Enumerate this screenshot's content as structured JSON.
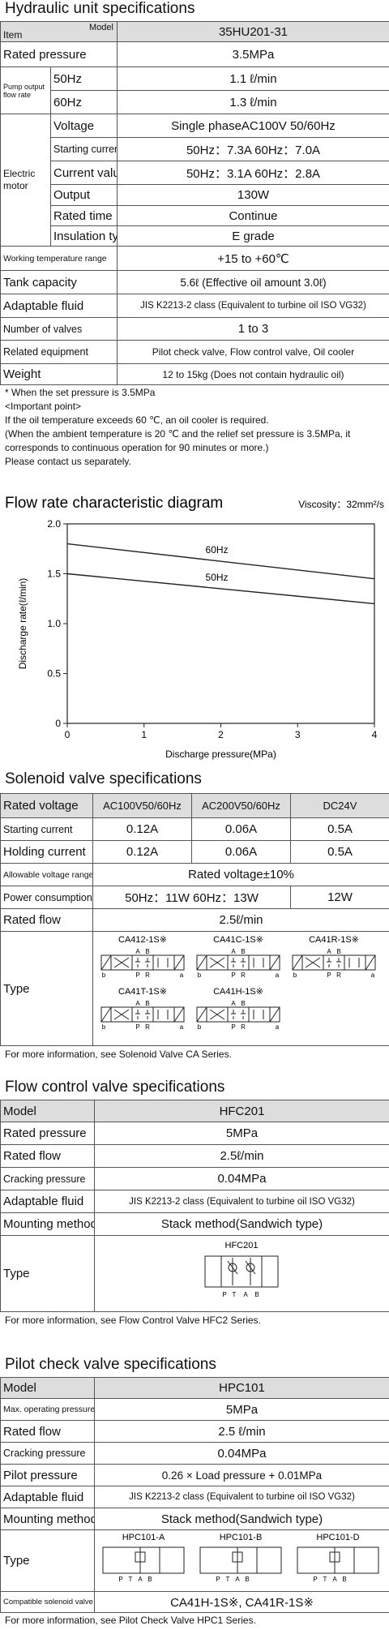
{
  "hydraulic_unit": {
    "title": "Hydraulic unit specifications",
    "item": "Item",
    "model_label": "Model",
    "model": "35HU201-31",
    "rated_pressure": [
      "Rated pressure",
      "3.5MPa"
    ],
    "pump": {
      "group": "Pump output flow rate",
      "rows": [
        [
          "50Hz",
          "1.1 ℓ/min"
        ],
        [
          "60Hz",
          "1.3 ℓ/min"
        ]
      ]
    },
    "motor": {
      "group": "Electric motor",
      "rows": [
        [
          "Voltage",
          "Single phaseAC100V 50/60Hz"
        ],
        [
          "Starting current",
          "50Hz：7.3A  60Hz：7.0A"
        ],
        [
          "Current value※",
          "50Hz：3.1A  60Hz：2.8A"
        ],
        [
          "Output",
          "130W"
        ],
        [
          "Rated time",
          "Continue"
        ],
        [
          "Insulation type",
          "E grade"
        ]
      ]
    },
    "rows": [
      [
        "Working temperature range",
        "+15 to +60℃"
      ],
      [
        "Tank capacity",
        "5.6ℓ (Effective oil amount 3.0ℓ)"
      ],
      [
        "Adaptable fluid",
        "JIS K2213-2 class (Equivalent to turbine oil ISO VG32)"
      ],
      [
        "Number of valves",
        "1 to 3"
      ],
      [
        "Related equipment",
        "Pilot check valve, Flow control valve, Oil cooler"
      ],
      [
        "Weight",
        "12 to 15kg (Does not contain hydraulic oil)"
      ]
    ],
    "notes": [
      "* When the set pressure is 3.5MPa",
      "<Important point>",
      "If the oil temperature exceeds 60 ℃, an oil cooler is required.",
      "(When the ambient temperature is 20 ℃ and the relief set pressure is 3.5MPa, it corresponds to continuous operation for 90 minutes or more.)",
      "Please contact us separately."
    ]
  },
  "chart_data": {
    "type": "line",
    "title": "Flow rate characteristic diagram",
    "subtitle": "Viscosity：32mm²/s",
    "x_label": "Discharge pressure(MPa)",
    "y_label": "Discharge rate(ℓ/min)",
    "x": [
      0,
      4
    ],
    "series": [
      {
        "name": "60Hz",
        "color": "#222222",
        "values": [
          1.8,
          1.45
        ]
      },
      {
        "name": "50Hz",
        "color": "#222222",
        "values": [
          1.5,
          1.2
        ]
      }
    ],
    "xlim": [
      0,
      4
    ],
    "xticks": [
      0,
      1,
      2,
      3,
      4
    ],
    "ylim": [
      0,
      2
    ],
    "yticks": [
      0,
      0.5,
      {
        "value": 1,
        "label": "1.0"
      },
      1.5,
      {
        "value": 2,
        "label": "2.0"
      }
    ],
    "grid": false
  },
  "solenoid_valve": {
    "title": "Solenoid valve specifications",
    "header": [
      "Rated voltage",
      "AC100V50/60Hz",
      "AC200V50/60Hz",
      "DC24V"
    ],
    "rows": [
      [
        "Starting current",
        "0.12A",
        "0.06A",
        "0.5A"
      ],
      [
        "Holding current",
        "0.12A",
        "0.06A",
        "0.5A"
      ]
    ],
    "allowable": [
      "Allowable voltage range",
      "Rated voltage±10%"
    ],
    "power": [
      "Power consumption",
      "50Hz：11W 60Hz：13W",
      "12W"
    ],
    "rated_flow": [
      "Rated flow",
      "2.5ℓ/min"
    ],
    "type": {
      "label": "Type",
      "models": [
        "CA412-1S※",
        "CA41C-1S※",
        "CA41R-1S※",
        "CA41T-1S※",
        "CA41H-1S※"
      ]
    },
    "note": "For more information, see Solenoid Valve CA Series."
  },
  "flow_control_valve": {
    "title": "Flow control valve specifications",
    "rows": [
      [
        "Model",
        "HFC201"
      ],
      [
        "Rated pressure",
        "5MPa"
      ],
      [
        "Rated flow",
        "2.5ℓ/min"
      ],
      [
        "Cracking pressure",
        "0.04MPa"
      ],
      [
        "Adaptable fluid",
        "JIS K2213-2 class (Equivalent to turbine oil ISO VG32)"
      ],
      [
        "Mounting method",
        "Stack method(Sandwich type)"
      ]
    ],
    "type": {
      "label": "Type",
      "models": [
        "HFC201"
      ]
    },
    "note": "For more information, see Flow Control Valve HFC2 Series."
  },
  "pilot_check_valve": {
    "title": "Pilot check valve specifications",
    "rows": [
      [
        "Model",
        "HPC101"
      ],
      [
        "Max. operating pressure",
        "5MPa"
      ],
      [
        "Rated flow",
        "2.5 ℓ/min"
      ],
      [
        "Cracking pressure",
        "0.04MPa"
      ],
      [
        "Pilot pressure",
        "0.26 × Load pressure + 0.01MPa"
      ],
      [
        "Adaptable fluid",
        "JIS K2213-2 class (Equivalent to turbine oil ISO VG32)"
      ],
      [
        "Mounting method",
        "Stack method(Sandwich type)"
      ]
    ],
    "type": {
      "label": "Type",
      "models": [
        "HPC101-A",
        "HPC101-B",
        "HPC101-D"
      ]
    },
    "compatible": [
      "Compatible solenoid valve",
      "CA41H-1S※, CA41R-1S※"
    ],
    "note": "For more information, see Pilot Check Valve HPC1 Series."
  },
  "symbols": {
    "ports": {
      "A": "A",
      "B": "B",
      "P": "P",
      "R": "R",
      "T": "T",
      "a": "a",
      "b": "b"
    }
  }
}
